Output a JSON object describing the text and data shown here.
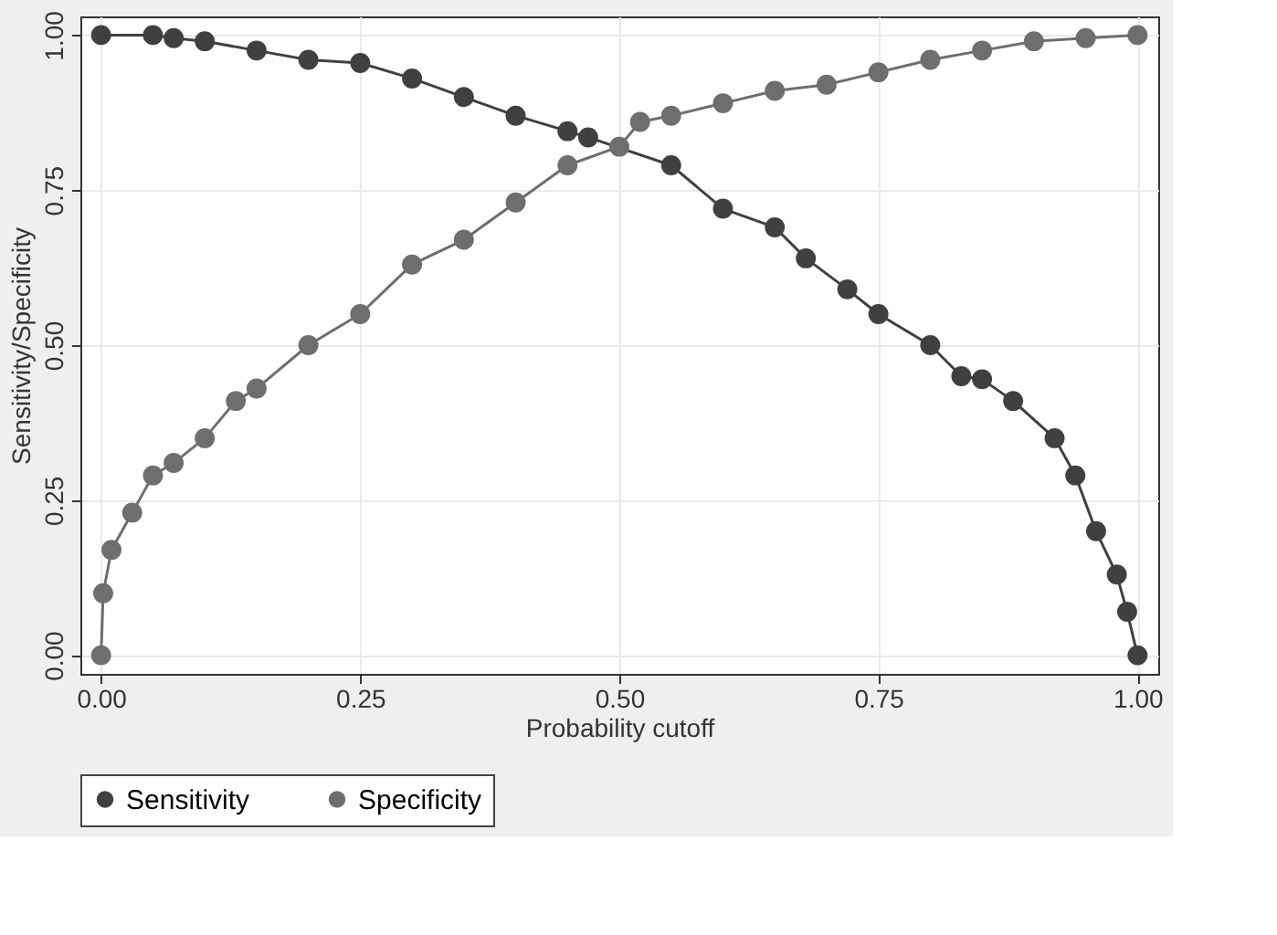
{
  "chart_data": {
    "type": "line",
    "xlabel": "Probability cutoff",
    "ylabel": "Sensitivity/Specificity",
    "xlim": [
      -0.02,
      1.02
    ],
    "ylim": [
      -0.03,
      1.03
    ],
    "xticks": [
      {
        "value": 0,
        "label": "0.00"
      },
      {
        "value": 0.25,
        "label": "0.25"
      },
      {
        "value": 0.5,
        "label": "0.50"
      },
      {
        "value": 0.75,
        "label": "0.75"
      },
      {
        "value": 1,
        "label": "1.00"
      }
    ],
    "yticks": [
      {
        "value": 0,
        "label": "0.00"
      },
      {
        "value": 0.25,
        "label": "0.25"
      },
      {
        "value": 0.5,
        "label": "0.50"
      },
      {
        "value": 0.75,
        "label": "0.75"
      },
      {
        "value": 1,
        "label": "1.00"
      }
    ],
    "grid": true,
    "legend": "bottom",
    "marker": "circle",
    "line_style": "solid",
    "series": [
      {
        "name": "Sensitivity",
        "color": "#404040",
        "x": [
          0,
          0.05,
          0.07,
          0.1,
          0.15,
          0.2,
          0.25,
          0.3,
          0.35,
          0.4,
          0.45,
          0.47,
          0.55,
          0.6,
          0.65,
          0.68,
          0.72,
          0.75,
          0.8,
          0.83,
          0.85,
          0.88,
          0.92,
          0.94,
          0.96,
          0.98,
          0.99,
          1.0
        ],
        "values": [
          1,
          1,
          0.995,
          0.99,
          0.975,
          0.96,
          0.955,
          0.93,
          0.9,
          0.87,
          0.845,
          0.835,
          0.79,
          0.72,
          0.69,
          0.64,
          0.59,
          0.55,
          0.5,
          0.45,
          0.445,
          0.41,
          0.35,
          0.29,
          0.2,
          0.13,
          0.07,
          0
        ]
      },
      {
        "name": "Specificity",
        "color": "#6e6e6e",
        "x": [
          0,
          0.002,
          0.01,
          0.03,
          0.05,
          0.07,
          0.1,
          0.13,
          0.15,
          0.2,
          0.25,
          0.3,
          0.35,
          0.4,
          0.45,
          0.5,
          0.52,
          0.55,
          0.6,
          0.65,
          0.7,
          0.75,
          0.8,
          0.85,
          0.9,
          0.95,
          1.0
        ],
        "values": [
          0,
          0.1,
          0.17,
          0.23,
          0.29,
          0.31,
          0.35,
          0.41,
          0.43,
          0.5,
          0.55,
          0.63,
          0.67,
          0.73,
          0.79,
          0.82,
          0.86,
          0.87,
          0.89,
          0.91,
          0.92,
          0.94,
          0.96,
          0.975,
          0.99,
          0.995,
          1.0
        ]
      }
    ]
  }
}
